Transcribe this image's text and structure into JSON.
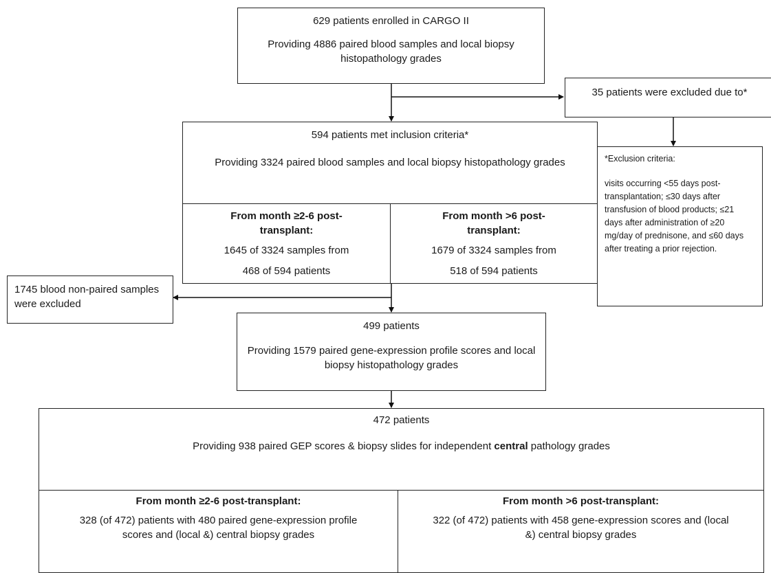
{
  "enrolled": {
    "line1": "629 patients enrolled in CARGO II",
    "line2": "Providing 4886 paired blood samples and local biopsy histopathology grades"
  },
  "excluded_35": {
    "text": "35 patients were excluded due to*"
  },
  "exclusion_criteria": {
    "title": "*Exclusion criteria:",
    "body": "visits occurring <55 days post-transplantation; ≤30 days after transfusion of blood products; ≤21 days after administration of ≥20 mg/day of prednisone, and ≤60 days after treating a prior rejection."
  },
  "inclusion": {
    "line1": "594 patients met inclusion criteria*",
    "line2": "Providing 3324 paired blood samples and local biopsy histopathology grades",
    "left": {
      "heading": "From month ≥2-6 post-transplant:",
      "line1": "1645 of 3324 samples from",
      "line2": "468 of 594 patients"
    },
    "right": {
      "heading": "From month >6 post-transplant:",
      "line1": "1679 of 3324 samples from",
      "line2": "518 of 594 patients"
    }
  },
  "excluded_1745": {
    "text": "1745 blood non-paired samples were excluded"
  },
  "p499": {
    "line1": "499 patients",
    "line2": "Providing 1579 paired gene-expression profile scores and local biopsy histopathology grades"
  },
  "p472": {
    "line1": "472 patients",
    "line2_pre": "Providing 938 paired GEP scores & biopsy slides for independent ",
    "line2_bold": "central",
    "line2_post": " pathology grades",
    "left": {
      "heading": "From month ≥2-6 post-transplant:",
      "body": "328 (of 472) patients with 480 paired gene-expression profile scores and (local &) central biopsy grades"
    },
    "right": {
      "heading": "From month >6 post-transplant:",
      "body": "322 (of 472) patients with 458 gene-expression scores and (local &) central biopsy grades"
    }
  }
}
